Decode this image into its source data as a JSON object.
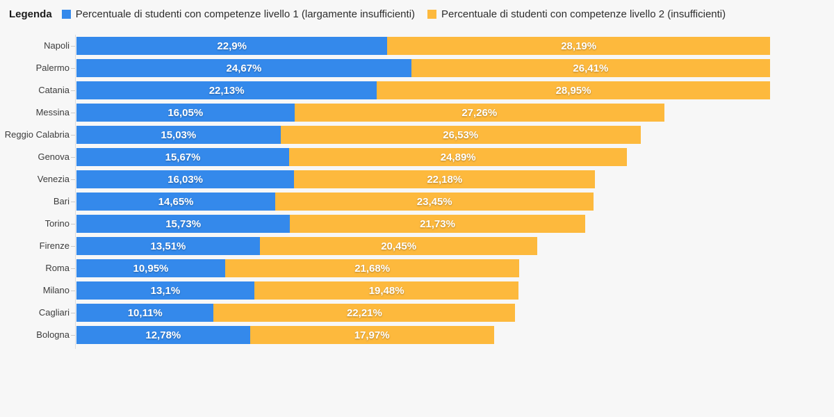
{
  "background": "#f7f7f7",
  "legend": {
    "title": "Legenda",
    "items": [
      {
        "label": "Percentuale di studenti con competenze livello 1 (largamente insufficienti)",
        "color": "#3489eb"
      },
      {
        "label": "Percentuale di studenti con competenze livello 2 (insufficienti)",
        "color": "#fdb93d"
      }
    ]
  },
  "chart_data": {
    "type": "bar",
    "orientation": "horizontal",
    "stacked": true,
    "grid": false,
    "legend_position": "top",
    "value_suffix": "%",
    "xlim": [
      0,
      51.09
    ],
    "categories": [
      "Napoli",
      "Palermo",
      "Catania",
      "Messina",
      "Reggio Calabria",
      "Genova",
      "Venezia",
      "Bari",
      "Torino",
      "Firenze",
      "Roma",
      "Milano",
      "Cagliari",
      "Bologna"
    ],
    "series": [
      {
        "name": "Percentuale di studenti con competenze livello 1 (largamente insufficienti)",
        "color": "#3489eb",
        "values": [
          22.9,
          24.67,
          22.13,
          16.05,
          15.03,
          15.67,
          16.03,
          14.65,
          15.73,
          13.51,
          10.95,
          13.1,
          10.11,
          12.78
        ],
        "labels": [
          "22,9%",
          "24,67%",
          "22,13%",
          "16,05%",
          "15,03%",
          "15,67%",
          "16,03%",
          "14,65%",
          "15,73%",
          "13,51%",
          "10,95%",
          "13,1%",
          "10,11%",
          "12,78%"
        ]
      },
      {
        "name": "Percentuale di studenti con competenze livello 2 (insufficienti)",
        "color": "#fdb93d",
        "values": [
          28.19,
          26.41,
          28.95,
          27.26,
          26.53,
          24.89,
          22.18,
          23.45,
          21.73,
          20.45,
          21.68,
          19.48,
          22.21,
          17.97
        ],
        "labels": [
          "28,19%",
          "26,41%",
          "28,95%",
          "27,26%",
          "26,53%",
          "24,89%",
          "22,18%",
          "23,45%",
          "21,73%",
          "20,45%",
          "21,68%",
          "19,48%",
          "22,21%",
          "17,97%"
        ]
      }
    ]
  }
}
